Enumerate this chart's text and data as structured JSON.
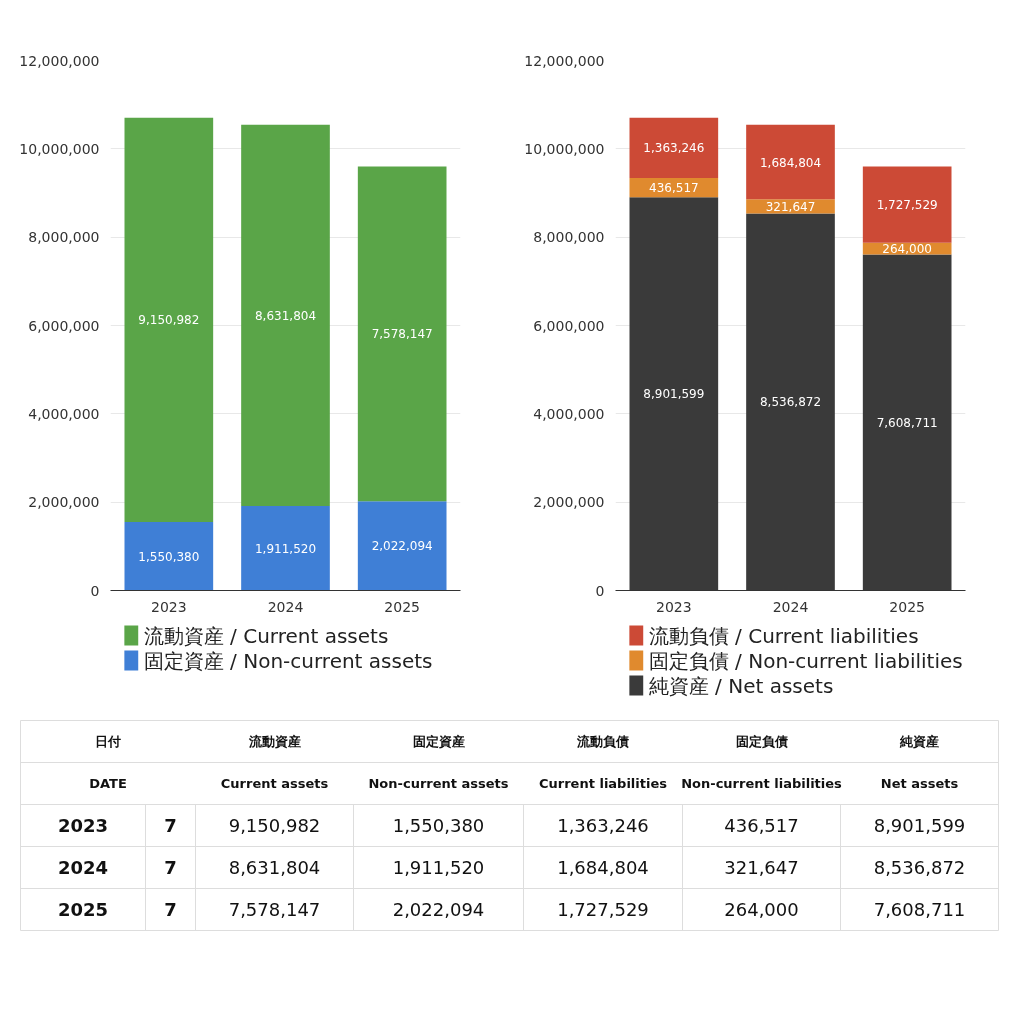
{
  "chart_data": [
    {
      "type": "bar",
      "stacked": true,
      "categories": [
        "2023",
        "2024",
        "2025"
      ],
      "series": [
        {
          "name": "固定資産 / Non-current assets",
          "color": "#3f7fd6",
          "values": [
            1550380,
            1911520,
            2022094
          ],
          "value_labels": [
            "1,550,380",
            "1,911,520",
            "2,022,094"
          ]
        },
        {
          "name": "流動資産 / Current assets",
          "color": "#5aa548",
          "values": [
            9150982,
            8631804,
            7578147
          ],
          "value_labels": [
            "9,150,982",
            "8,631,804",
            "7,578,147"
          ]
        }
      ],
      "ylim": [
        0,
        12000000
      ],
      "yticks": [
        {
          "value": 0,
          "label": "0"
        },
        {
          "value": 2000000,
          "label": "2,000,000"
        },
        {
          "value": 4000000,
          "label": "4,000,000"
        },
        {
          "value": 6000000,
          "label": "6,000,000"
        },
        {
          "value": 8000000,
          "label": "8,000,000"
        },
        {
          "value": 10000000,
          "label": "10,000,000"
        },
        {
          "value": 12000000,
          "label": "12,000,000"
        }
      ],
      "grid": "y",
      "legend": "bottom",
      "data_labels": true
    },
    {
      "type": "bar",
      "stacked": true,
      "categories": [
        "2023",
        "2024",
        "2025"
      ],
      "series": [
        {
          "name": "純資産 / Net assets",
          "color": "#3a3a3a",
          "values": [
            8901599,
            8536872,
            7608711
          ],
          "value_labels": [
            "8,901,599",
            "8,536,872",
            "7,608,711"
          ]
        },
        {
          "name": "固定負債 / Non-current liabilities",
          "color": "#e08a2e",
          "values": [
            436517,
            321647,
            264000
          ],
          "value_labels": [
            "436,517",
            "321,647",
            "264,000"
          ]
        },
        {
          "name": "流動負債 / Current liabilities",
          "color": "#cc4a36",
          "values": [
            1363246,
            1684804,
            1727529
          ],
          "value_labels": [
            "1,363,246",
            "1,684,804",
            "1,727,529"
          ]
        }
      ],
      "ylim": [
        0,
        12000000
      ],
      "yticks": [
        {
          "value": 0,
          "label": "0"
        },
        {
          "value": 2000000,
          "label": "2,000,000"
        },
        {
          "value": 4000000,
          "label": "4,000,000"
        },
        {
          "value": 6000000,
          "label": "6,000,000"
        },
        {
          "value": 8000000,
          "label": "8,000,000"
        },
        {
          "value": 10000000,
          "label": "10,000,000"
        },
        {
          "value": 12000000,
          "label": "12,000,000"
        }
      ],
      "grid": "y",
      "legend": "bottom",
      "data_labels": true
    },
    {
      "type": "other",
      "annotations": [
        "日付",
        "流動資産",
        "固定資産",
        "流動負債",
        "固定負債",
        "純資産",
        "DATE",
        "Current assets",
        "Non-current assets",
        "Current liabilities",
        "Non-current liabilities",
        "Net assets",
        "2023",
        "7",
        "9,150,982",
        "1,550,380",
        "1,363,246",
        "436,517",
        "8,901,599",
        "2024",
        "7",
        "8,631,804",
        "1,911,520",
        "1,684,804",
        "321,647",
        "8,536,872",
        "2025",
        "7",
        "7,578,147",
        "2,022,094",
        "1,727,529",
        "264,000",
        "7,608,711"
      ]
    }
  ]
}
